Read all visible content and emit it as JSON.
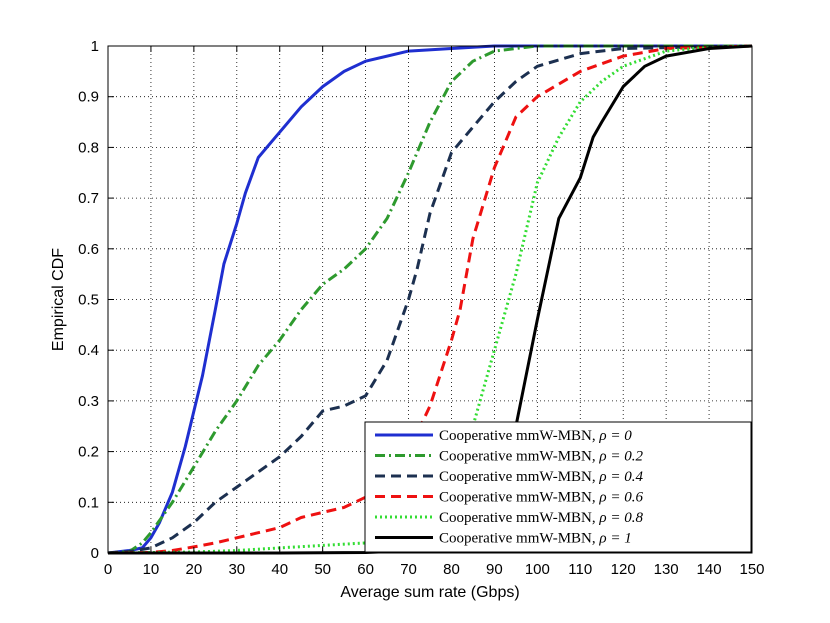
{
  "chart_data": {
    "type": "line",
    "title": "",
    "xlabel": "Average sum rate (Gbps)",
    "ylabel": "Empirical CDF",
    "xlim": [
      0,
      150
    ],
    "ylim": [
      0,
      1
    ],
    "xticks": [
      0,
      10,
      20,
      30,
      40,
      50,
      60,
      70,
      80,
      90,
      100,
      110,
      120,
      130,
      140,
      150
    ],
    "yticks": [
      0,
      0.1,
      0.2,
      0.3,
      0.4,
      0.5,
      0.6,
      0.7,
      0.8,
      0.9,
      1
    ],
    "xtick_labels": [
      "0",
      "10",
      "20",
      "30",
      "40",
      "50",
      "60",
      "70",
      "80",
      "90",
      "100",
      "110",
      "120",
      "130",
      "140",
      "150"
    ],
    "ytick_labels": [
      "0",
      "0.1",
      "0.2",
      "0.3",
      "0.4",
      "0.5",
      "0.6",
      "0.7",
      "0.8",
      "0.9",
      "1"
    ],
    "grid": true,
    "legend_position": "bottom-right",
    "series": [
      {
        "name": "Cooperative mmW-MBN, ρ = 0",
        "label_text": "Cooperative mmW-MBN, ",
        "label_math": "ρ = 0",
        "color": "#1f2fd0",
        "dash": "solid",
        "x": [
          0,
          5,
          8,
          10,
          12,
          15,
          18,
          20,
          22,
          25,
          27,
          30,
          32,
          35,
          38,
          40,
          45,
          50,
          55,
          60,
          70,
          80,
          90,
          100,
          150
        ],
        "y": [
          0,
          0.005,
          0.01,
          0.03,
          0.06,
          0.12,
          0.21,
          0.28,
          0.35,
          0.48,
          0.57,
          0.65,
          0.71,
          0.78,
          0.81,
          0.83,
          0.88,
          0.92,
          0.95,
          0.97,
          0.99,
          0.995,
          1.0,
          1.0,
          1.0
        ]
      },
      {
        "name": "Cooperative mmW-MBN, ρ = 0.2",
        "label_text": "Cooperative mmW-MBN, ",
        "label_math": "ρ = 0.2",
        "color": "#2e9a2e",
        "dash": "dashdot",
        "x": [
          0,
          5,
          8,
          10,
          15,
          20,
          25,
          30,
          35,
          40,
          45,
          50,
          55,
          60,
          65,
          70,
          75,
          80,
          85,
          90,
          95,
          100,
          110,
          150
        ],
        "y": [
          0,
          0.003,
          0.02,
          0.04,
          0.1,
          0.17,
          0.24,
          0.3,
          0.37,
          0.42,
          0.48,
          0.53,
          0.56,
          0.6,
          0.66,
          0.75,
          0.85,
          0.93,
          0.97,
          0.99,
          0.995,
          1.0,
          1.0,
          1.0
        ]
      },
      {
        "name": "Cooperative mmW-MBN, ρ = 0.4",
        "label_text": "Cooperative mmW-MBN, ",
        "label_math": "ρ = 0.4",
        "color": "#1c3050",
        "dash": "dashed",
        "x": [
          0,
          5,
          10,
          15,
          20,
          25,
          30,
          35,
          40,
          45,
          50,
          55,
          60,
          65,
          70,
          72,
          75,
          80,
          85,
          90,
          95,
          100,
          110,
          120,
          150
        ],
        "y": [
          0,
          0.003,
          0.01,
          0.03,
          0.06,
          0.1,
          0.13,
          0.16,
          0.19,
          0.23,
          0.28,
          0.29,
          0.31,
          0.38,
          0.5,
          0.56,
          0.67,
          0.79,
          0.84,
          0.89,
          0.93,
          0.96,
          0.985,
          0.995,
          1.0
        ]
      },
      {
        "name": "Cooperative mmW-MBN, ρ = 0.6",
        "label_text": "Cooperative mmW-MBN, ",
        "label_math": "ρ = 0.6",
        "color": "#ee1111",
        "dash": "dashed",
        "x": [
          0,
          10,
          15,
          20,
          25,
          30,
          35,
          40,
          45,
          50,
          55,
          60,
          65,
          70,
          75,
          80,
          82,
          85,
          90,
          95,
          100,
          110,
          120,
          130,
          150
        ],
        "y": [
          0,
          0.001,
          0.005,
          0.012,
          0.02,
          0.03,
          0.04,
          0.05,
          0.07,
          0.08,
          0.09,
          0.11,
          0.15,
          0.2,
          0.29,
          0.42,
          0.48,
          0.62,
          0.76,
          0.86,
          0.9,
          0.95,
          0.98,
          0.995,
          1.0
        ]
      },
      {
        "name": "Cooperative mmW-MBN, ρ = 0.8",
        "label_text": "Cooperative mmW-MBN, ",
        "label_math": "ρ = 0.8",
        "color": "#33dd33",
        "dash": "dotted",
        "x": [
          0,
          20,
          30,
          40,
          50,
          60,
          65,
          70,
          75,
          80,
          85,
          88,
          90,
          95,
          100,
          105,
          110,
          115,
          120,
          130,
          140,
          150
        ],
        "y": [
          0,
          0.002,
          0.005,
          0.01,
          0.015,
          0.02,
          0.025,
          0.04,
          0.08,
          0.14,
          0.25,
          0.34,
          0.4,
          0.55,
          0.73,
          0.82,
          0.89,
          0.93,
          0.96,
          0.99,
          0.998,
          1.0
        ]
      },
      {
        "name": "Cooperative mmW-MBN, ρ = 1",
        "label_text": "Cooperative mmW-MBN, ",
        "label_math": "ρ = 1",
        "color": "#000000",
        "dash": "solid",
        "x": [
          0,
          40,
          60,
          70,
          80,
          85,
          88,
          90,
          92,
          95,
          100,
          103,
          105,
          110,
          113,
          115,
          120,
          125,
          130,
          140,
          150
        ],
        "y": [
          0,
          0.0,
          0.001,
          0.004,
          0.01,
          0.02,
          0.03,
          0.07,
          0.14,
          0.25,
          0.46,
          0.58,
          0.66,
          0.74,
          0.82,
          0.85,
          0.92,
          0.96,
          0.98,
          0.995,
          1.0
        ]
      }
    ]
  }
}
